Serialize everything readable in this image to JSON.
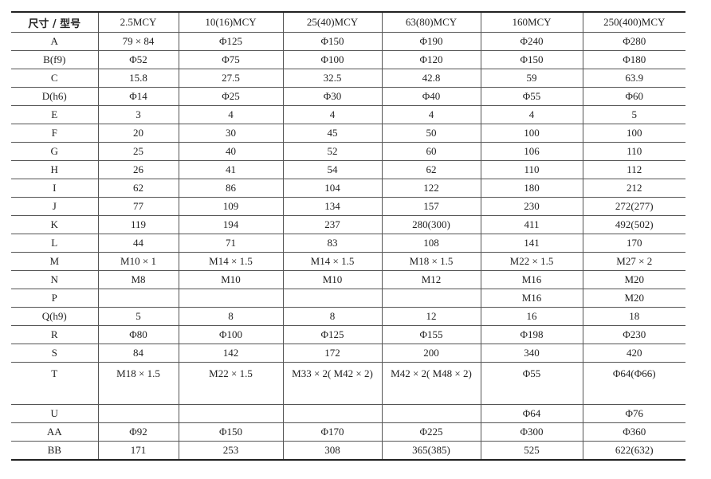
{
  "headers": [
    "尺寸 / 型号",
    "2.5MCY",
    "10(16)MCY",
    "25(40)MCY",
    "63(80)MCY",
    "160MCY",
    "250(400)MCY"
  ],
  "rows": [
    [
      "A",
      "79 × 84",
      "Φ125",
      "Φ150",
      "Φ190",
      "Φ240",
      "Φ280"
    ],
    [
      "B(f9)",
      "Φ52",
      "Φ75",
      "Φ100",
      "Φ120",
      "Φ150",
      "Φ180"
    ],
    [
      "C",
      "15.8",
      "27.5",
      "32.5",
      "42.8",
      "59",
      "63.9"
    ],
    [
      "D(h6)",
      "Φ14",
      "Φ25",
      "Φ30",
      "Φ40",
      "Φ55",
      "Φ60"
    ],
    [
      "E",
      "3",
      "4",
      "4",
      "4",
      "4",
      "5"
    ],
    [
      "F",
      "20",
      "30",
      "45",
      "50",
      "100",
      "100"
    ],
    [
      "G",
      "25",
      "40",
      "52",
      "60",
      "106",
      "110"
    ],
    [
      "H",
      "26",
      "41",
      "54",
      "62",
      "110",
      "112"
    ],
    [
      "I",
      "62",
      "86",
      "104",
      "122",
      "180",
      "212"
    ],
    [
      "J",
      "77",
      "109",
      "134",
      "157",
      "230",
      "272(277)"
    ],
    [
      "K",
      "119",
      "194",
      "237",
      "280(300)",
      "411",
      "492(502)"
    ],
    [
      "L",
      "44",
      "71",
      "83",
      "108",
      "141",
      "170"
    ],
    [
      "M",
      "M10 × 1",
      "M14 × 1.5",
      "M14 × 1.5",
      "M18 × 1.5",
      "M22 × 1.5",
      "M27 × 2"
    ],
    [
      "N",
      "M8",
      "M10",
      "M10",
      "M12",
      "M16",
      "M20"
    ],
    [
      "P",
      "",
      "",
      "",
      "",
      "M16",
      "M20"
    ],
    [
      "Q(h9)",
      "5",
      "8",
      "8",
      "12",
      "16",
      "18"
    ],
    [
      "R",
      "Φ80",
      "Φ100",
      "Φ125",
      "Φ155",
      "Φ198",
      "Φ230"
    ],
    [
      "S",
      "84",
      "142",
      "172",
      "200",
      "340",
      "420"
    ],
    [
      "T",
      "M18 × 1.5",
      "M22 × 1.5",
      "M33 × 2( M42 × 2)",
      "M42 × 2( M48 × 2)",
      "Φ55",
      "Φ64(Φ66)"
    ],
    [
      "U",
      "",
      "",
      "",
      "",
      "Φ64",
      "Φ76"
    ],
    [
      "AA",
      "Φ92",
      "Φ150",
      "Φ170",
      "Φ225",
      "Φ300",
      "Φ360"
    ],
    [
      "BB",
      "171",
      "253",
      "308",
      "365(385)",
      "525",
      "622(632)"
    ]
  ]
}
